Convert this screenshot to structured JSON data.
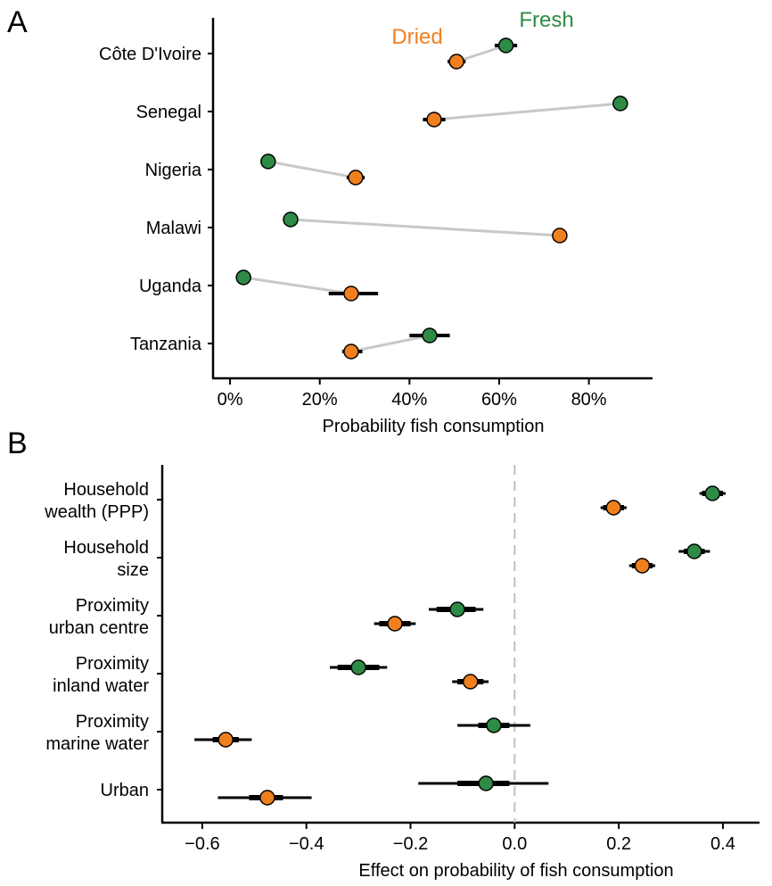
{
  "colors": {
    "dried": "#F07F1E",
    "fresh": "#2E8B45",
    "connector": "#c8c8c8",
    "zero_line": "#c0c0c0"
  },
  "chart_data": [
    {
      "panel": "A",
      "type": "scatter",
      "xlabel": "Probability fish consumption",
      "xlim": [
        -0.02,
        0.93
      ],
      "xticks": [
        0,
        0.2,
        0.4,
        0.6,
        0.8
      ],
      "xtick_labels": [
        "0%",
        "20%",
        "40%",
        "60%",
        "80%"
      ],
      "series_labels": {
        "dried": "Dried",
        "fresh": "Fresh"
      },
      "categories": [
        "Côte D'Ivoire",
        "Senegal",
        "Nigeria",
        "Malawi",
        "Uganda",
        "Tanzania"
      ],
      "series": [
        {
          "key": "dried",
          "values": [
            0.505,
            0.455,
            0.28,
            0.735,
            0.27,
            0.27
          ],
          "ci": [
            [
              0.485,
              0.525
            ],
            [
              0.43,
              0.48
            ],
            [
              0.26,
              0.3
            ],
            [
              0.73,
              0.74
            ],
            [
              0.22,
              0.33
            ],
            [
              0.25,
              0.295
            ]
          ]
        },
        {
          "key": "fresh",
          "values": [
            0.615,
            0.87,
            0.085,
            0.135,
            0.03,
            0.445
          ],
          "ci": [
            [
              0.59,
              0.64
            ],
            [
              0.865,
              0.875
            ],
            [
              0.08,
              0.09
            ],
            [
              0.13,
              0.14
            ],
            [
              0.025,
              0.035
            ],
            [
              0.4,
              0.49
            ]
          ]
        }
      ]
    },
    {
      "panel": "B",
      "type": "scatter",
      "xlabel": "Effect on probability of fish consumption",
      "xlim": [
        -0.67,
        0.46
      ],
      "xticks": [
        -0.6,
        -0.4,
        -0.2,
        0.0,
        0.2,
        0.4
      ],
      "xtick_labels": [
        "−0.6",
        "−0.4",
        "−0.2",
        "0.0",
        "0.2",
        "0.4"
      ],
      "zero_line": true,
      "categories": [
        [
          "Household",
          "wealth (PPP)"
        ],
        [
          "Household",
          "size"
        ],
        [
          "Proximity",
          "urban centre"
        ],
        [
          "Proximity",
          "inland water"
        ],
        [
          "Proximity",
          "marine water"
        ],
        [
          "Urban"
        ]
      ],
      "series": [
        {
          "key": "dried",
          "values": [
            0.19,
            0.245,
            -0.23,
            -0.085,
            -0.555,
            -0.475
          ],
          "ci": [
            [
              0.165,
              0.215
            ],
            [
              0.22,
              0.27
            ],
            [
              -0.27,
              -0.19
            ],
            [
              -0.12,
              -0.05
            ],
            [
              -0.615,
              -0.505
            ],
            [
              -0.57,
              -0.39
            ]
          ],
          "ci_inner": [
            [
              0.17,
              0.21
            ],
            [
              0.225,
              0.265
            ],
            [
              -0.26,
              -0.2
            ],
            [
              -0.11,
              -0.06
            ],
            [
              -0.58,
              -0.53
            ],
            [
              -0.51,
              -0.445
            ]
          ]
        },
        {
          "key": "fresh",
          "values": [
            0.38,
            0.345,
            -0.11,
            -0.3,
            -0.04,
            -0.055
          ],
          "ci": [
            [
              0.355,
              0.405
            ],
            [
              0.315,
              0.375
            ],
            [
              -0.165,
              -0.06
            ],
            [
              -0.355,
              -0.245
            ],
            [
              -0.11,
              0.03
            ],
            [
              -0.185,
              0.065
            ]
          ],
          "ci_inner": [
            [
              0.36,
              0.4
            ],
            [
              0.325,
              0.365
            ],
            [
              -0.15,
              -0.075
            ],
            [
              -0.34,
              -0.26
            ],
            [
              -0.07,
              -0.01
            ],
            [
              -0.11,
              -0.01
            ]
          ]
        }
      ]
    }
  ]
}
